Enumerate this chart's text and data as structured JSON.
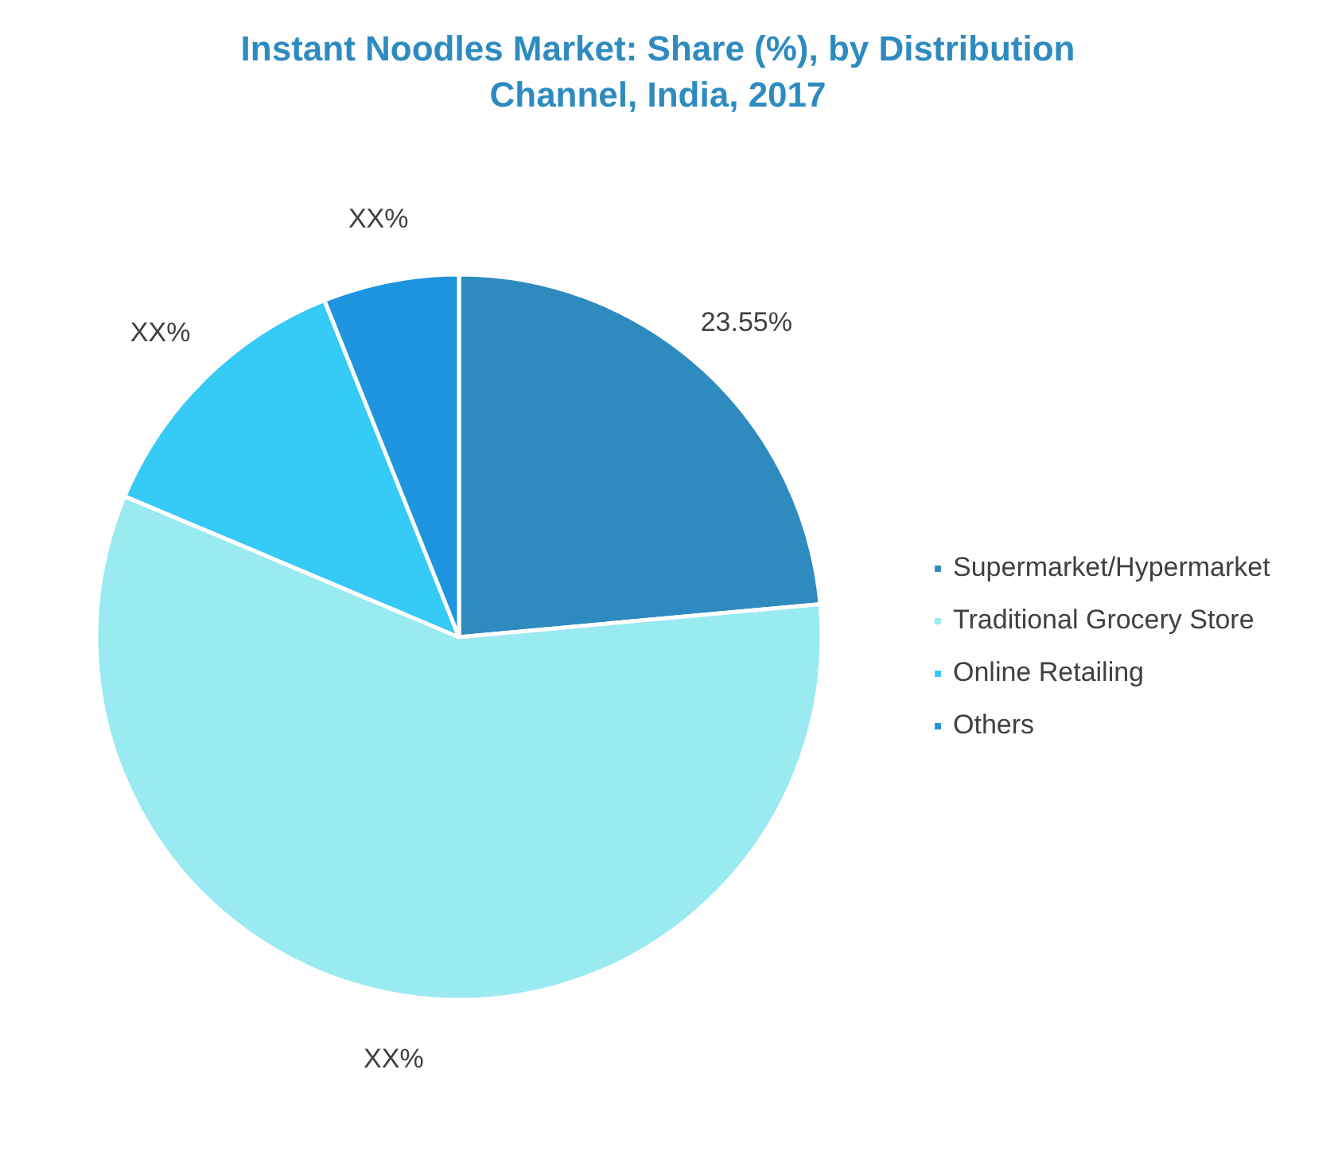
{
  "chart_data": {
    "type": "pie",
    "title": "Instant Noodles Market: Share (%), by Distribution Channel, India, 2017",
    "categories": [
      "Supermarket/Hypermarket",
      "Traditional Grocery Store",
      "Online Retailing",
      "Others"
    ],
    "values": [
      23.55,
      57.8,
      12.6,
      6.05
    ],
    "colors": [
      "#2e8bc0",
      "#9aeaf1",
      "#36caf6",
      "#1e94df"
    ],
    "value_labels": [
      "23.55%",
      "XX%",
      "XX%",
      "XX%"
    ],
    "legend": "right"
  }
}
